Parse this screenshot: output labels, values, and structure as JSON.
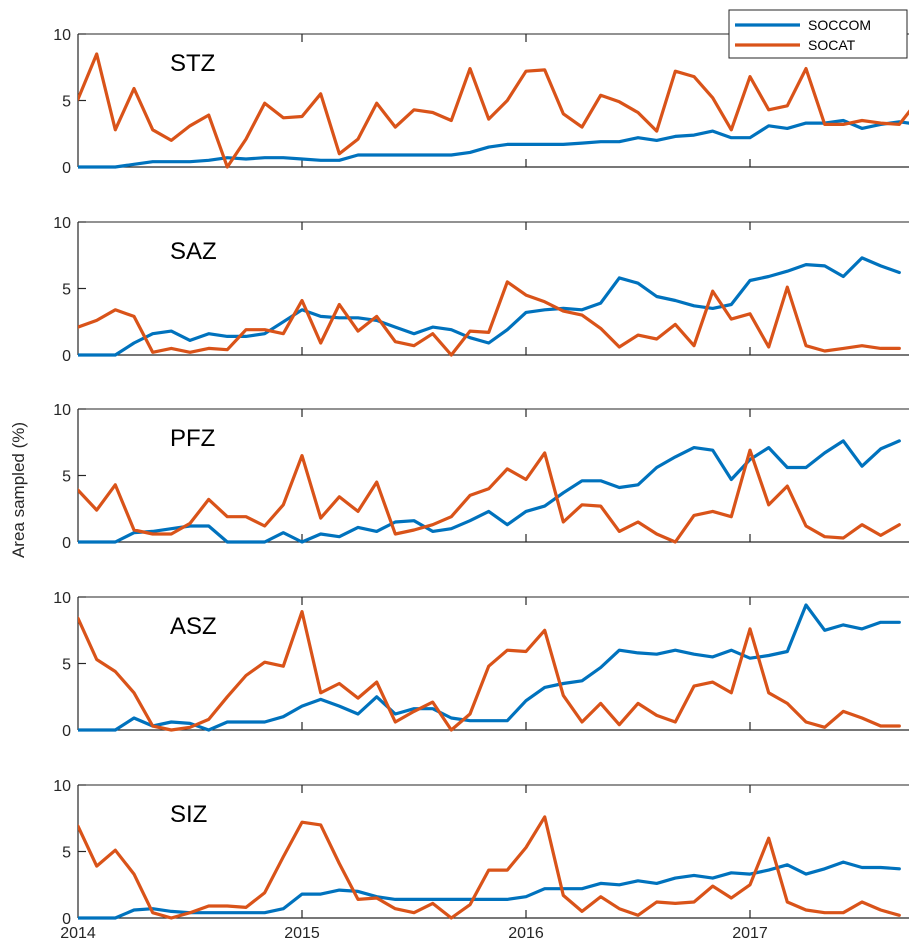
{
  "chart_data": {
    "type": "line",
    "ylabel": "Area sampled (%)",
    "xlim": [
      2014,
      2017.7
    ],
    "ylim": [
      0,
      10
    ],
    "x_ticks": [
      2014,
      2015,
      2016,
      2017
    ],
    "y_ticks": [
      0,
      5,
      10
    ],
    "grid": false,
    "legend": {
      "placement": "top-right",
      "entries": [
        "SOCCOM",
        "SOCAT"
      ]
    },
    "colors": {
      "SOCCOM": "#0072BD",
      "SOCAT": "#D95319"
    },
    "x_start": 2014.0,
    "x_step_months": 1,
    "panels": [
      {
        "label": "STZ",
        "series": [
          {
            "name": "SOCCOM",
            "values": [
              0,
              0,
              0,
              0.2,
              0.4,
              0.4,
              0.4,
              0.5,
              0.7,
              0.6,
              0.7,
              0.7,
              0.6,
              0.5,
              0.5,
              0.9,
              0.9,
              0.9,
              0.9,
              0.9,
              0.9,
              1.1,
              1.5,
              1.7,
              1.7,
              1.7,
              1.7,
              1.8,
              1.9,
              1.9,
              2.2,
              2.0,
              2.3,
              2.4,
              2.7,
              2.2,
              2.2,
              3.1,
              2.9,
              3.3,
              3.3,
              3.5,
              2.9,
              3.2,
              3.4,
              3.2,
              3.2,
              3.7
            ]
          },
          {
            "name": "SOCAT",
            "values": [
              5.1,
              8.5,
              2.8,
              5.9,
              2.8,
              2.0,
              3.1,
              3.9,
              0,
              2.1,
              4.8,
              3.7,
              3.8,
              5.5,
              1.0,
              2.1,
              4.8,
              3.0,
              4.3,
              4.1,
              3.5,
              7.4,
              3.6,
              5.0,
              7.2,
              7.3,
              4.0,
              3.0,
              5.4,
              4.9,
              4.1,
              2.7,
              7.2,
              6.8,
              5.2,
              2.8,
              6.8,
              4.3,
              4.6,
              7.4,
              3.2,
              3.2,
              3.5,
              3.3,
              3.2,
              5.0,
              3.2
            ]
          }
        ]
      },
      {
        "label": "SAZ",
        "series": [
          {
            "name": "SOCCOM",
            "values": [
              0,
              0,
              0,
              0.9,
              1.6,
              1.8,
              1.1,
              1.6,
              1.4,
              1.4,
              1.6,
              2.5,
              3.4,
              2.9,
              2.8,
              2.8,
              2.6,
              2.1,
              1.6,
              2.1,
              1.9,
              1.3,
              0.9,
              1.9,
              3.2,
              3.4,
              3.5,
              3.4,
              3.9,
              5.8,
              5.4,
              4.4,
              4.1,
              3.7,
              3.5,
              3.8,
              5.6,
              5.9,
              6.3,
              6.8,
              6.7,
              5.9,
              7.3,
              6.7,
              6.2
            ]
          },
          {
            "name": "SOCAT",
            "values": [
              2.1,
              2.6,
              3.4,
              2.9,
              0.2,
              0.5,
              0.2,
              0.5,
              0.4,
              1.9,
              1.9,
              1.6,
              4.1,
              0.9,
              3.8,
              1.8,
              2.9,
              1.0,
              0.7,
              1.6,
              0,
              1.8,
              1.7,
              5.5,
              4.5,
              4.0,
              3.3,
              3.0,
              2.0,
              0.6,
              1.5,
              1.2,
              2.3,
              0.7,
              4.8,
              2.7,
              3.1,
              0.6,
              5.1,
              0.7,
              0.3,
              0.5,
              0.7,
              0.5,
              0.5
            ]
          }
        ]
      },
      {
        "label": "PFZ",
        "series": [
          {
            "name": "SOCCOM",
            "values": [
              0,
              0,
              0,
              0.7,
              0.8,
              1.0,
              1.2,
              1.2,
              0,
              0,
              0,
              0.7,
              0,
              0.6,
              0.4,
              1.1,
              0.8,
              1.5,
              1.6,
              0.8,
              1.0,
              1.6,
              2.3,
              1.3,
              2.3,
              2.7,
              3.7,
              4.6,
              4.6,
              4.1,
              4.3,
              5.6,
              6.4,
              7.1,
              6.9,
              4.7,
              6.2,
              7.1,
              5.6,
              5.6,
              6.7,
              7.6,
              5.7,
              7.0,
              7.6
            ]
          },
          {
            "name": "SOCAT",
            "values": [
              3.9,
              2.4,
              4.3,
              0.9,
              0.6,
              0.6,
              1.4,
              3.2,
              1.9,
              1.9,
              1.2,
              2.8,
              6.5,
              1.8,
              3.4,
              2.3,
              4.5,
              0.6,
              0.9,
              1.3,
              1.9,
              3.5,
              4.0,
              5.5,
              4.7,
              6.7,
              1.5,
              2.8,
              2.7,
              0.8,
              1.5,
              0.6,
              0,
              2.0,
              2.3,
              1.9,
              6.9,
              2.8,
              4.2,
              1.2,
              0.4,
              0.3,
              1.3,
              0.5,
              1.3
            ]
          }
        ]
      },
      {
        "label": "ASZ",
        "series": [
          {
            "name": "SOCCOM",
            "values": [
              0,
              0,
              0,
              0.9,
              0.3,
              0.6,
              0.5,
              0,
              0.6,
              0.6,
              0.6,
              1.0,
              1.8,
              2.3,
              1.8,
              1.2,
              2.5,
              1.2,
              1.6,
              1.6,
              0.9,
              0.7,
              0.7,
              0.7,
              2.2,
              3.2,
              3.5,
              3.7,
              4.7,
              6.0,
              5.8,
              5.7,
              6.0,
              5.7,
              5.5,
              6.0,
              5.4,
              5.6,
              5.9,
              9.4,
              7.5,
              7.9,
              7.6,
              8.1,
              8.1
            ]
          },
          {
            "name": "SOCAT",
            "values": [
              8.4,
              5.3,
              4.4,
              2.8,
              0.3,
              0,
              0.2,
              0.8,
              2.5,
              4.1,
              5.1,
              4.8,
              8.9,
              2.8,
              3.5,
              2.4,
              3.6,
              0.6,
              1.4,
              2.1,
              0,
              1.2,
              4.8,
              6.0,
              5.9,
              7.5,
              2.6,
              0.6,
              2.0,
              0.4,
              2.0,
              1.1,
              0.6,
              3.3,
              3.6,
              2.8,
              7.6,
              2.8,
              2.0,
              0.6,
              0.2,
              1.4,
              0.9,
              0.3,
              0.3
            ]
          }
        ]
      },
      {
        "label": "SIZ",
        "series": [
          {
            "name": "SOCCOM",
            "values": [
              0,
              0,
              0,
              0.6,
              0.7,
              0.5,
              0.4,
              0.4,
              0.4,
              0.4,
              0.4,
              0.7,
              1.8,
              1.8,
              2.1,
              2.0,
              1.6,
              1.4,
              1.4,
              1.4,
              1.4,
              1.4,
              1.4,
              1.4,
              1.6,
              2.2,
              2.2,
              2.2,
              2.6,
              2.5,
              2.8,
              2.6,
              3.0,
              3.2,
              3.0,
              3.4,
              3.3,
              3.6,
              4.0,
              3.3,
              3.7,
              4.2,
              3.8,
              3.8,
              3.7
            ]
          },
          {
            "name": "SOCAT",
            "values": [
              6.9,
              3.9,
              5.1,
              3.3,
              0.4,
              0,
              0.4,
              0.9,
              0.9,
              0.8,
              1.9,
              4.6,
              7.2,
              7.0,
              4.1,
              1.4,
              1.5,
              0.7,
              0.4,
              1.1,
              0,
              1.0,
              3.6,
              3.6,
              5.3,
              7.6,
              1.7,
              0.5,
              1.6,
              0.7,
              0.2,
              1.2,
              1.1,
              1.2,
              2.4,
              1.5,
              2.5,
              6.0,
              1.2,
              0.6,
              0.4,
              0.4,
              1.2,
              0.6,
              0.2
            ]
          }
        ]
      }
    ]
  }
}
